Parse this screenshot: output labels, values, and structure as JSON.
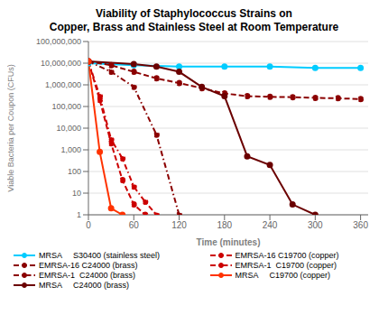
{
  "chart_data": {
    "type": "line",
    "title": "Viability of Staphylococcus Strains on\nCopper, Brass and Stainless Steel at Room Temperature",
    "xlabel": "Time (minutes)",
    "ylabel": "Viable Bacteria per Coupon (CFUs)",
    "log": "y",
    "grid": "y",
    "legend": "bottom",
    "xlim": [
      0,
      370
    ],
    "xticks": [
      0,
      60,
      120,
      180,
      240,
      300,
      360
    ],
    "ylim": [
      1,
      100000000
    ],
    "yticks": [
      1,
      10,
      100,
      {
        "value": 1000,
        "label": "1,000"
      },
      {
        "value": 10000,
        "label": "10,000"
      },
      {
        "value": 100000,
        "label": "100,000"
      },
      {
        "value": 1000000,
        "label": "1,000,000"
      },
      {
        "value": 10000000,
        "label": "10,000,000"
      },
      {
        "value": 100000000,
        "label": "100,000,000"
      }
    ],
    "series": [
      {
        "name": "MRSA     S30400 (stainless steel)",
        "color": "#00ccff",
        "line_style": "solid",
        "marker": "circle",
        "x": [
          0,
          60,
          120,
          180,
          240,
          300,
          360
        ],
        "values": [
          10000000,
          8000000,
          7000000,
          7000000,
          7000000,
          6000000,
          6000000
        ]
      },
      {
        "name": "EMRSA-16 C24000 (brass)",
        "color": "#8b0000",
        "line_style": "dashed",
        "marker": "circle",
        "x": [
          0,
          30,
          60,
          90,
          120,
          150,
          180,
          210,
          240,
          270,
          300,
          330,
          360
        ],
        "values": [
          12000000,
          8000000,
          4000000,
          2000000,
          1200000,
          700000,
          400000,
          300000,
          280000,
          270000,
          250000,
          240000,
          220000
        ]
      },
      {
        "name": "EMRSA-1  C24000 (brass)",
        "color": "#8b0000",
        "line_style": "dashdot",
        "marker": "circle",
        "x": [
          0,
          30,
          60,
          90,
          120
        ],
        "values": [
          12000000,
          4000000,
          800000,
          5000,
          1
        ]
      },
      {
        "name": "MRSA     C24000 (brass)",
        "color": "#6b0000",
        "line_style": "solid",
        "marker": "circle",
        "x": [
          0,
          60,
          90,
          120,
          150,
          180,
          210,
          240,
          270,
          300
        ],
        "values": [
          12000000,
          9000000,
          7000000,
          4000000,
          800000,
          300000,
          500,
          200,
          3,
          1
        ]
      },
      {
        "name": "EMRSA-16 C19700 (copper)",
        "color": "#cc0000",
        "line_style": "dashed",
        "marker": "circle",
        "x": [
          0,
          15,
          30,
          45,
          60,
          75
        ],
        "values": [
          12000000,
          200000,
          2000,
          40,
          3,
          1
        ]
      },
      {
        "name": "EMRSA-1  C19700 (copper)",
        "color": "#cc0000",
        "line_style": "dashdot",
        "marker": "circle",
        "x": [
          0,
          15,
          30,
          45,
          60,
          75,
          90
        ],
        "values": [
          12000000,
          300000,
          3000,
          400,
          20,
          4,
          1
        ]
      },
      {
        "name": "MRSA     C19700 (copper)",
        "color": "#ff3300",
        "line_style": "solid",
        "marker": "circle",
        "x": [
          0,
          15,
          30,
          45
        ],
        "values": [
          12000000,
          800,
          2,
          1
        ]
      }
    ]
  }
}
